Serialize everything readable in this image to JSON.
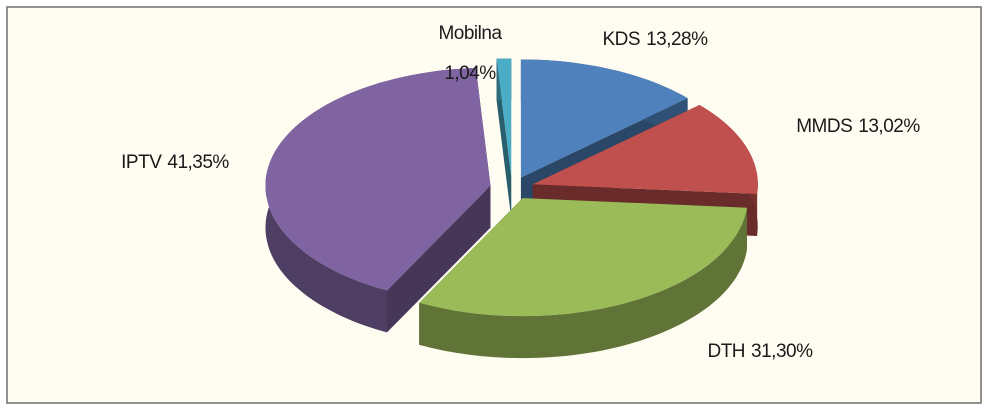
{
  "chart_data": {
    "type": "pie3d",
    "categories": [
      "KDS",
      "MMDS",
      "DTH",
      "IPTV",
      "Mobilna"
    ],
    "values": [
      13.28,
      13.02,
      31.3,
      41.35,
      1.04
    ],
    "value_labels": [
      "13,28%",
      "13,02%",
      "31,30%",
      "41,35%",
      "1,04%"
    ],
    "colors": [
      "#4f81bd",
      "#c0504d",
      "#9bbb59",
      "#8064a2",
      "#4bacc6"
    ],
    "exploded": true
  }
}
